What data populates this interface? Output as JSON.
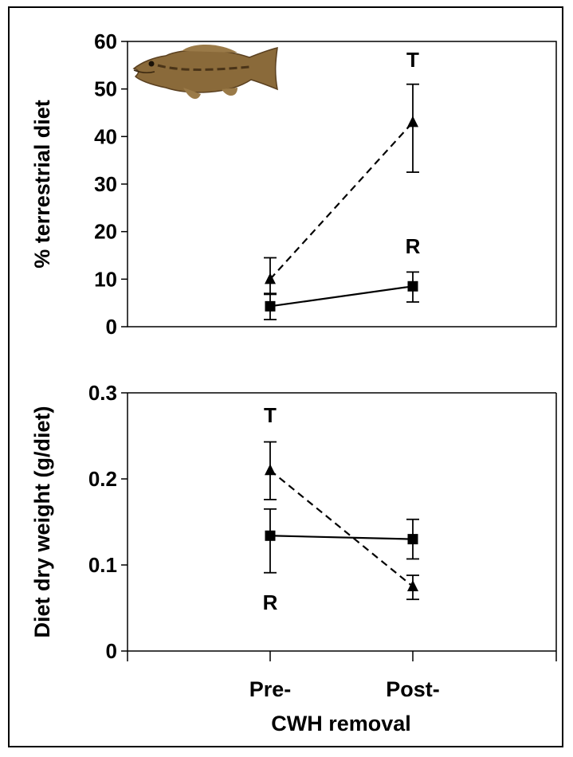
{
  "figure": {
    "fish_icon": "largemouth-bass-icon",
    "x_axis_label": "CWH removal",
    "x_categories": [
      "Pre-",
      "Post-"
    ]
  },
  "chart_data": [
    {
      "type": "line",
      "title": "",
      "xlabel": "",
      "ylabel": "% terrestrial diet",
      "ylim": [
        0,
        60
      ],
      "yticks": [
        "0",
        "10",
        "20",
        "30",
        "40",
        "50",
        "60"
      ],
      "categories": [
        "Pre-",
        "Post-"
      ],
      "series": [
        {
          "name": "T",
          "marker": "triangle",
          "line": "dashed",
          "values": [
            10,
            43
          ],
          "err_low": [
            7,
            32.5
          ],
          "err_high": [
            14.5,
            51
          ]
        },
        {
          "name": "R",
          "marker": "square",
          "line": "solid",
          "values": [
            4.3,
            8.5
          ],
          "err_low": [
            1.5,
            5.2
          ],
          "err_high": [
            6.8,
            11.5
          ]
        }
      ]
    },
    {
      "type": "line",
      "title": "",
      "xlabel": "CWH removal",
      "ylabel": "Diet dry weight (g/diet)",
      "ylim": [
        0,
        0.3
      ],
      "yticks": [
        "0",
        "0.1",
        "0.2",
        "0.3"
      ],
      "categories": [
        "Pre-",
        "Post-"
      ],
      "series": [
        {
          "name": "T",
          "marker": "triangle",
          "line": "dashed",
          "values": [
            0.21,
            0.075
          ],
          "err_low": [
            0.176,
            0.06
          ],
          "err_high": [
            0.243,
            0.088
          ]
        },
        {
          "name": "R",
          "marker": "square",
          "line": "solid",
          "values": [
            0.134,
            0.13
          ],
          "err_low": [
            0.091,
            0.107
          ],
          "err_high": [
            0.165,
            0.153
          ]
        }
      ]
    }
  ]
}
